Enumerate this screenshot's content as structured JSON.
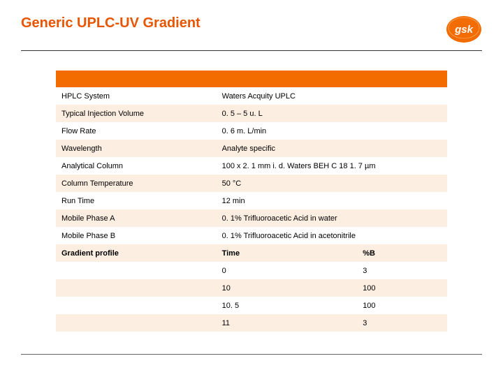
{
  "title": "Generic UPLC-UV Gradient",
  "logo": {
    "text": "gsk",
    "bg_color": "#f36c00",
    "text_color": "#ffffff"
  },
  "colors": {
    "title": "#e85500",
    "header_bg": "#f36c00",
    "stripe_bg": "#fdeee2",
    "rule": "#333333"
  },
  "table": {
    "rows": [
      {
        "label": "HPLC System",
        "value": "Waters Acquity UPLC"
      },
      {
        "label": "Typical Injection Volume",
        "value": "0. 5 – 5 u. L"
      },
      {
        "label": "Flow Rate",
        "value": "0. 6 m. L/min"
      },
      {
        "label": "Wavelength",
        "value": "Analyte specific"
      },
      {
        "label": "Analytical Column",
        "value": "100 x 2. 1 mm i. d. Waters BEH C 18 1. 7 µm"
      },
      {
        "label": "Column Temperature",
        "value": "50 °C"
      },
      {
        "label": "Run Time",
        "value": "12 min"
      },
      {
        "label": "Mobile Phase A",
        "value": "0. 1% Trifluoroacetic Acid in water"
      },
      {
        "label": "Mobile Phase B",
        "value": "0. 1% Trifluoroacetic Acid in acetonitrile"
      }
    ],
    "gradient_label": "Gradient profile",
    "gradient_headers": {
      "time": "Time",
      "pctB": "%B"
    },
    "gradient": [
      {
        "time": "0",
        "pctB": "3"
      },
      {
        "time": "10",
        "pctB": "100"
      },
      {
        "time": "10. 5",
        "pctB": "100"
      },
      {
        "time": "11",
        "pctB": "3"
      }
    ]
  }
}
